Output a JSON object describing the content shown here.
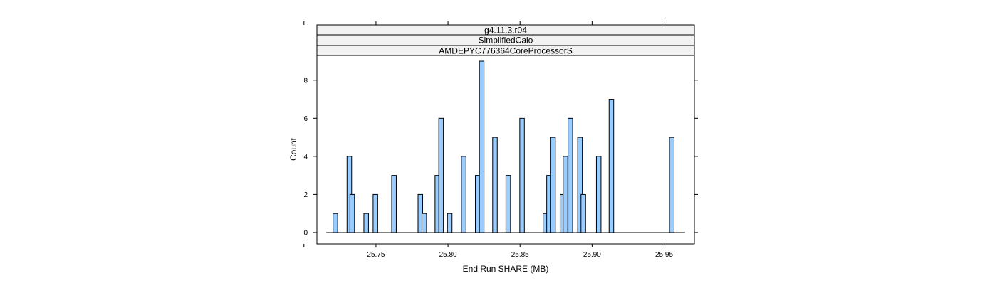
{
  "chart_data": {
    "type": "bar",
    "strips": [
      "g4.11.3.r04",
      "SimplifiedCalo",
      "AMDEPYC776364CoreProcessorS"
    ],
    "xlabel": "End Run SHARE (MB)",
    "ylabel": "Count",
    "xlim": [
      25.709,
      25.971
    ],
    "ylim": [
      -0.6,
      9.3
    ],
    "x_ticks": [
      "25.75",
      "25.80",
      "25.85",
      "25.90",
      "25.95"
    ],
    "x_tick_values": [
      25.75,
      25.8,
      25.85,
      25.9,
      25.95
    ],
    "y_ticks": [
      "0",
      "2",
      "4",
      "6",
      "8"
    ],
    "y_tick_values": [
      0,
      2,
      4,
      6,
      8
    ],
    "baseline_range": [
      25.7155,
      25.9645
    ],
    "bin_width": 0.0032,
    "bar_color": "#99ccff",
    "bins": [
      {
        "x": 25.7218,
        "count": 1
      },
      {
        "x": 25.7315,
        "count": 4
      },
      {
        "x": 25.7335,
        "count": 2
      },
      {
        "x": 25.7432,
        "count": 1
      },
      {
        "x": 25.7496,
        "count": 2
      },
      {
        "x": 25.7625,
        "count": 3
      },
      {
        "x": 25.7808,
        "count": 2
      },
      {
        "x": 25.7835,
        "count": 1
      },
      {
        "x": 25.7926,
        "count": 3
      },
      {
        "x": 25.7952,
        "count": 6
      },
      {
        "x": 25.8012,
        "count": 1
      },
      {
        "x": 25.8109,
        "count": 4
      },
      {
        "x": 25.8206,
        "count": 3
      },
      {
        "x": 25.8234,
        "count": 9
      },
      {
        "x": 25.8326,
        "count": 5
      },
      {
        "x": 25.8418,
        "count": 3
      },
      {
        "x": 25.8514,
        "count": 6
      },
      {
        "x": 25.8676,
        "count": 1
      },
      {
        "x": 25.8701,
        "count": 3
      },
      {
        "x": 25.8729,
        "count": 5
      },
      {
        "x": 25.8794,
        "count": 2
      },
      {
        "x": 25.8815,
        "count": 4
      },
      {
        "x": 25.8849,
        "count": 6
      },
      {
        "x": 25.8916,
        "count": 5
      },
      {
        "x": 25.8939,
        "count": 2
      },
      {
        "x": 25.9046,
        "count": 4
      },
      {
        "x": 25.9134,
        "count": 7
      },
      {
        "x": 25.9553,
        "count": 5
      }
    ]
  }
}
